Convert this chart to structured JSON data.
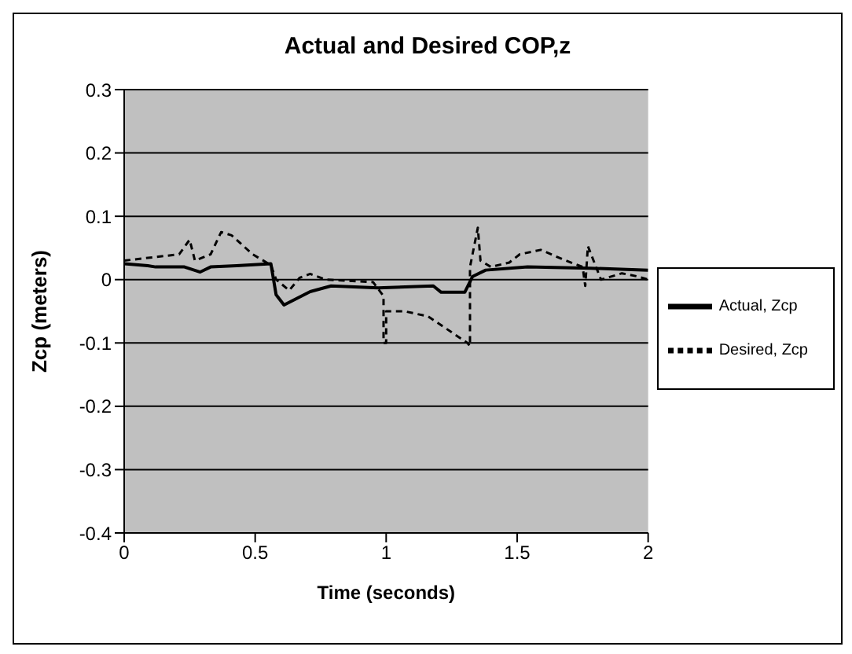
{
  "chart_data": {
    "type": "line",
    "title": "Actual and Desired COP,z",
    "xlabel": "Time (seconds)",
    "ylabel": "Zcp (meters)",
    "xlim": [
      0,
      2
    ],
    "xticks": [
      0,
      0.5,
      1,
      1.5,
      2
    ],
    "ylim": [
      -0.4,
      0.3
    ],
    "yticks": [
      -0.4,
      -0.3,
      -0.2,
      -0.1,
      0,
      0.1,
      0.2,
      0.3
    ],
    "grid": "y",
    "legend": "right",
    "marker": "none",
    "series": [
      {
        "name": "Actual, Zcp",
        "color": "#000000",
        "line_style": "solid",
        "x": [
          0,
          0.09,
          0.12,
          0.23,
          0.29,
          0.33,
          0.43,
          0.56,
          0.58,
          0.61,
          0.71,
          0.79,
          0.97,
          1.18,
          1.21,
          1.3,
          1.33,
          1.38,
          1.54,
          1.78,
          2
        ],
        "values": [
          0.025,
          0.022,
          0.02,
          0.02,
          0.012,
          0.02,
          0.022,
          0.025,
          -0.024,
          -0.04,
          -0.019,
          -0.01,
          -0.013,
          -0.01,
          -0.02,
          -0.02,
          0.005,
          0.015,
          0.02,
          0.018,
          0.015
        ]
      },
      {
        "name": "Desired, Zcp",
        "color": "#000000",
        "line_style": "dashed",
        "x": [
          0,
          0.21,
          0.25,
          0.27,
          0.33,
          0.37,
          0.41,
          0.49,
          0.56,
          0.58,
          0.63,
          0.67,
          0.71,
          0.77,
          0.95,
          0.99,
          0.99,
          1.0,
          1.0,
          1.07,
          1.16,
          1.31,
          1.32,
          1.32,
          1.35,
          1.36,
          1.4,
          1.47,
          1.51,
          1.59,
          1.68,
          1.75,
          1.76,
          1.77,
          1.82,
          1.9,
          1.96,
          2
        ],
        "values": [
          0.03,
          0.04,
          0.063,
          0.03,
          0.04,
          0.075,
          0.07,
          0.04,
          0.023,
          0,
          -0.017,
          0.003,
          0.009,
          0,
          -0.004,
          -0.026,
          -0.1,
          -0.1,
          -0.05,
          -0.05,
          -0.058,
          -0.1,
          -0.105,
          0.02,
          0.082,
          0.03,
          0.02,
          0.027,
          0.04,
          0.047,
          0.031,
          0.02,
          -0.01,
          0.053,
          0,
          0.01,
          0.005,
          0
        ]
      }
    ]
  }
}
